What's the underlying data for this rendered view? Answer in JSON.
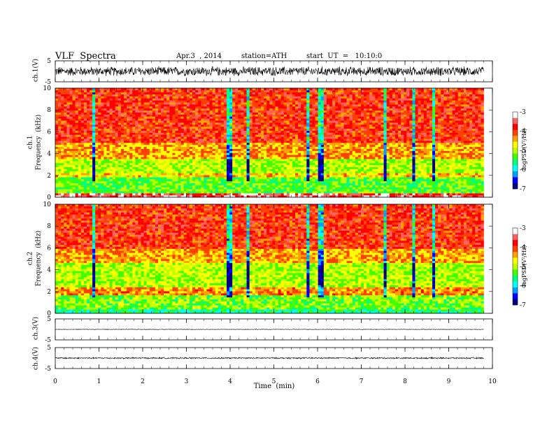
{
  "header": {
    "title": "VLF  Spectra",
    "date": "Apr.3  , 2014",
    "station": "station=ATH",
    "start_ut": "start  UT  =   10:10:0"
  },
  "colorbar": {
    "label": "logPSD(V²/Hz)",
    "ticks": [
      "-3",
      "-4",
      "-5",
      "-6",
      "-7"
    ],
    "range": [
      -7,
      -3
    ],
    "colors": [
      "#000080",
      "#0000ff",
      "#00a0ff",
      "#00ffff",
      "#00ff80",
      "#40ff00",
      "#c0ff00",
      "#ffff00",
      "#ffa000",
      "#ff4000",
      "#ff0000",
      "#ff6060",
      "#ffffff"
    ]
  },
  "panels": {
    "ch1_wave": {
      "ylabel": "ch.1(V)",
      "ticks": [
        "5",
        "-5"
      ]
    },
    "ch1_spec": {
      "ylabel_top": "ch.1",
      "ylabel": "Frequency  (kHz)",
      "ticks": [
        "10",
        "8",
        "6",
        "4",
        "2",
        "0"
      ]
    },
    "ch2_spec": {
      "ylabel_top": "ch.2",
      "ylabel": "Frequency  (kHz)",
      "ticks": [
        "10",
        "8",
        "6",
        "4",
        "2",
        "0"
      ]
    },
    "ch3_wave": {
      "ylabel": "ch.3(V)",
      "ticks": [
        "5",
        "-5"
      ]
    },
    "ch4_wave": {
      "ylabel": "ch.4(V)",
      "ticks": [
        "5",
        "-5"
      ]
    }
  },
  "chart_data": {
    "type": "heatmap",
    "xlabel": "Time  (min)",
    "x_ticks": [
      "0",
      "1",
      "2",
      "3",
      "4",
      "5",
      "6",
      "7",
      "8",
      "9",
      "10"
    ],
    "xlim": [
      0,
      10
    ],
    "data_end_min": 9.8,
    "waveform_ylim": [
      -5,
      5
    ],
    "frequency_ylim_khz": [
      0,
      10
    ],
    "spectrogram_bands_khz": {
      "ch1": [
        {
          "from": 0,
          "to": 0.4,
          "log_psd": -3.5
        },
        {
          "from": 0.4,
          "to": 1.8,
          "log_psd": -5.3
        },
        {
          "from": 1.8,
          "to": 2.3,
          "log_psd": -4.6
        },
        {
          "from": 2.3,
          "to": 3.6,
          "log_psd": -5.0
        },
        {
          "from": 3.6,
          "to": 5.0,
          "log_psd": -4.4
        },
        {
          "from": 5.0,
          "to": 10,
          "log_psd": -3.9
        }
      ],
      "ch2": [
        {
          "from": 0,
          "to": 0.3,
          "log_psd": -5.6
        },
        {
          "from": 0.3,
          "to": 1.6,
          "log_psd": -5.2
        },
        {
          "from": 1.6,
          "to": 2.4,
          "log_psd": -4.3
        },
        {
          "from": 2.4,
          "to": 4.6,
          "log_psd": -5.0
        },
        {
          "from": 4.6,
          "to": 6.0,
          "log_psd": -4.4
        },
        {
          "from": 6.0,
          "to": 10,
          "log_psd": -3.9
        }
      ]
    },
    "dark_streaks_min": [
      0.85,
      3.95,
      4.4,
      5.75,
      6.05,
      7.5,
      8.15,
      8.6
    ],
    "waveform_amplitude_v": {
      "ch1": 2.5,
      "ch3": 0.15,
      "ch4": 0.4
    }
  }
}
